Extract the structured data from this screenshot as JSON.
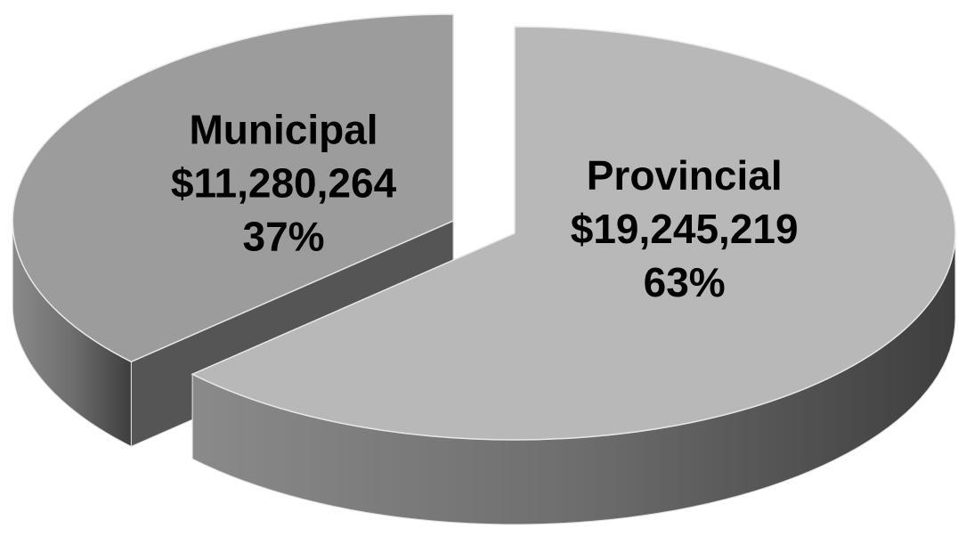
{
  "chart_data": {
    "type": "pie",
    "categories": [
      "Municipal",
      "Provincial"
    ],
    "values": [
      11280264,
      19245219
    ],
    "value_labels": [
      "$11,280,264",
      "$19,245,219"
    ],
    "percent_labels": [
      "37%",
      "63%"
    ],
    "colors": [
      "#9c9c9c",
      "#b8b8b8"
    ]
  }
}
